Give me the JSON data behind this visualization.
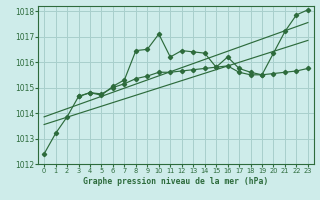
{
  "title": "Graphe pression niveau de la mer (hPa)",
  "bg_color": "#ceecea",
  "grid_color": "#a8cfcc",
  "line_color": "#2d6b3c",
  "xlim": [
    -0.5,
    23.5
  ],
  "ylim": [
    1012,
    1018.2
  ],
  "xticks": [
    0,
    1,
    2,
    3,
    4,
    5,
    6,
    7,
    8,
    9,
    10,
    11,
    12,
    13,
    14,
    15,
    16,
    17,
    18,
    19,
    20,
    21,
    22,
    23
  ],
  "yticks": [
    1012,
    1013,
    1014,
    1015,
    1016,
    1017,
    1018
  ],
  "s1_x": [
    0,
    1,
    2,
    3,
    4,
    5,
    6,
    7,
    8,
    9,
    10,
    11,
    12,
    13,
    14,
    15,
    16,
    17,
    18,
    19,
    20,
    21,
    22,
    23
  ],
  "s1_y": [
    1012.4,
    1013.2,
    1013.85,
    1014.65,
    1014.8,
    1014.7,
    1015.05,
    1015.3,
    1016.45,
    1016.5,
    1017.1,
    1016.2,
    1016.45,
    1016.4,
    1016.35,
    1015.8,
    1016.2,
    1015.75,
    1015.6,
    1015.5,
    1016.35,
    1017.2,
    1017.85,
    1018.05
  ],
  "s2_x": [
    3,
    4,
    5,
    6,
    7,
    8,
    9,
    10,
    11,
    12,
    13,
    14,
    15,
    16,
    17,
    18,
    19,
    20,
    21,
    22,
    23
  ],
  "s2_y": [
    1014.65,
    1014.8,
    1014.75,
    1015.0,
    1015.15,
    1015.35,
    1015.45,
    1015.6,
    1015.6,
    1015.65,
    1015.7,
    1015.75,
    1015.8,
    1015.85,
    1015.6,
    1015.5,
    1015.5,
    1015.55,
    1015.6,
    1015.65,
    1015.75
  ],
  "trend1_x": [
    0,
    23
  ],
  "trend1_y": [
    1013.55,
    1016.85
  ],
  "trend2_x": [
    0,
    23
  ],
  "trend2_y": [
    1013.85,
    1017.55
  ]
}
